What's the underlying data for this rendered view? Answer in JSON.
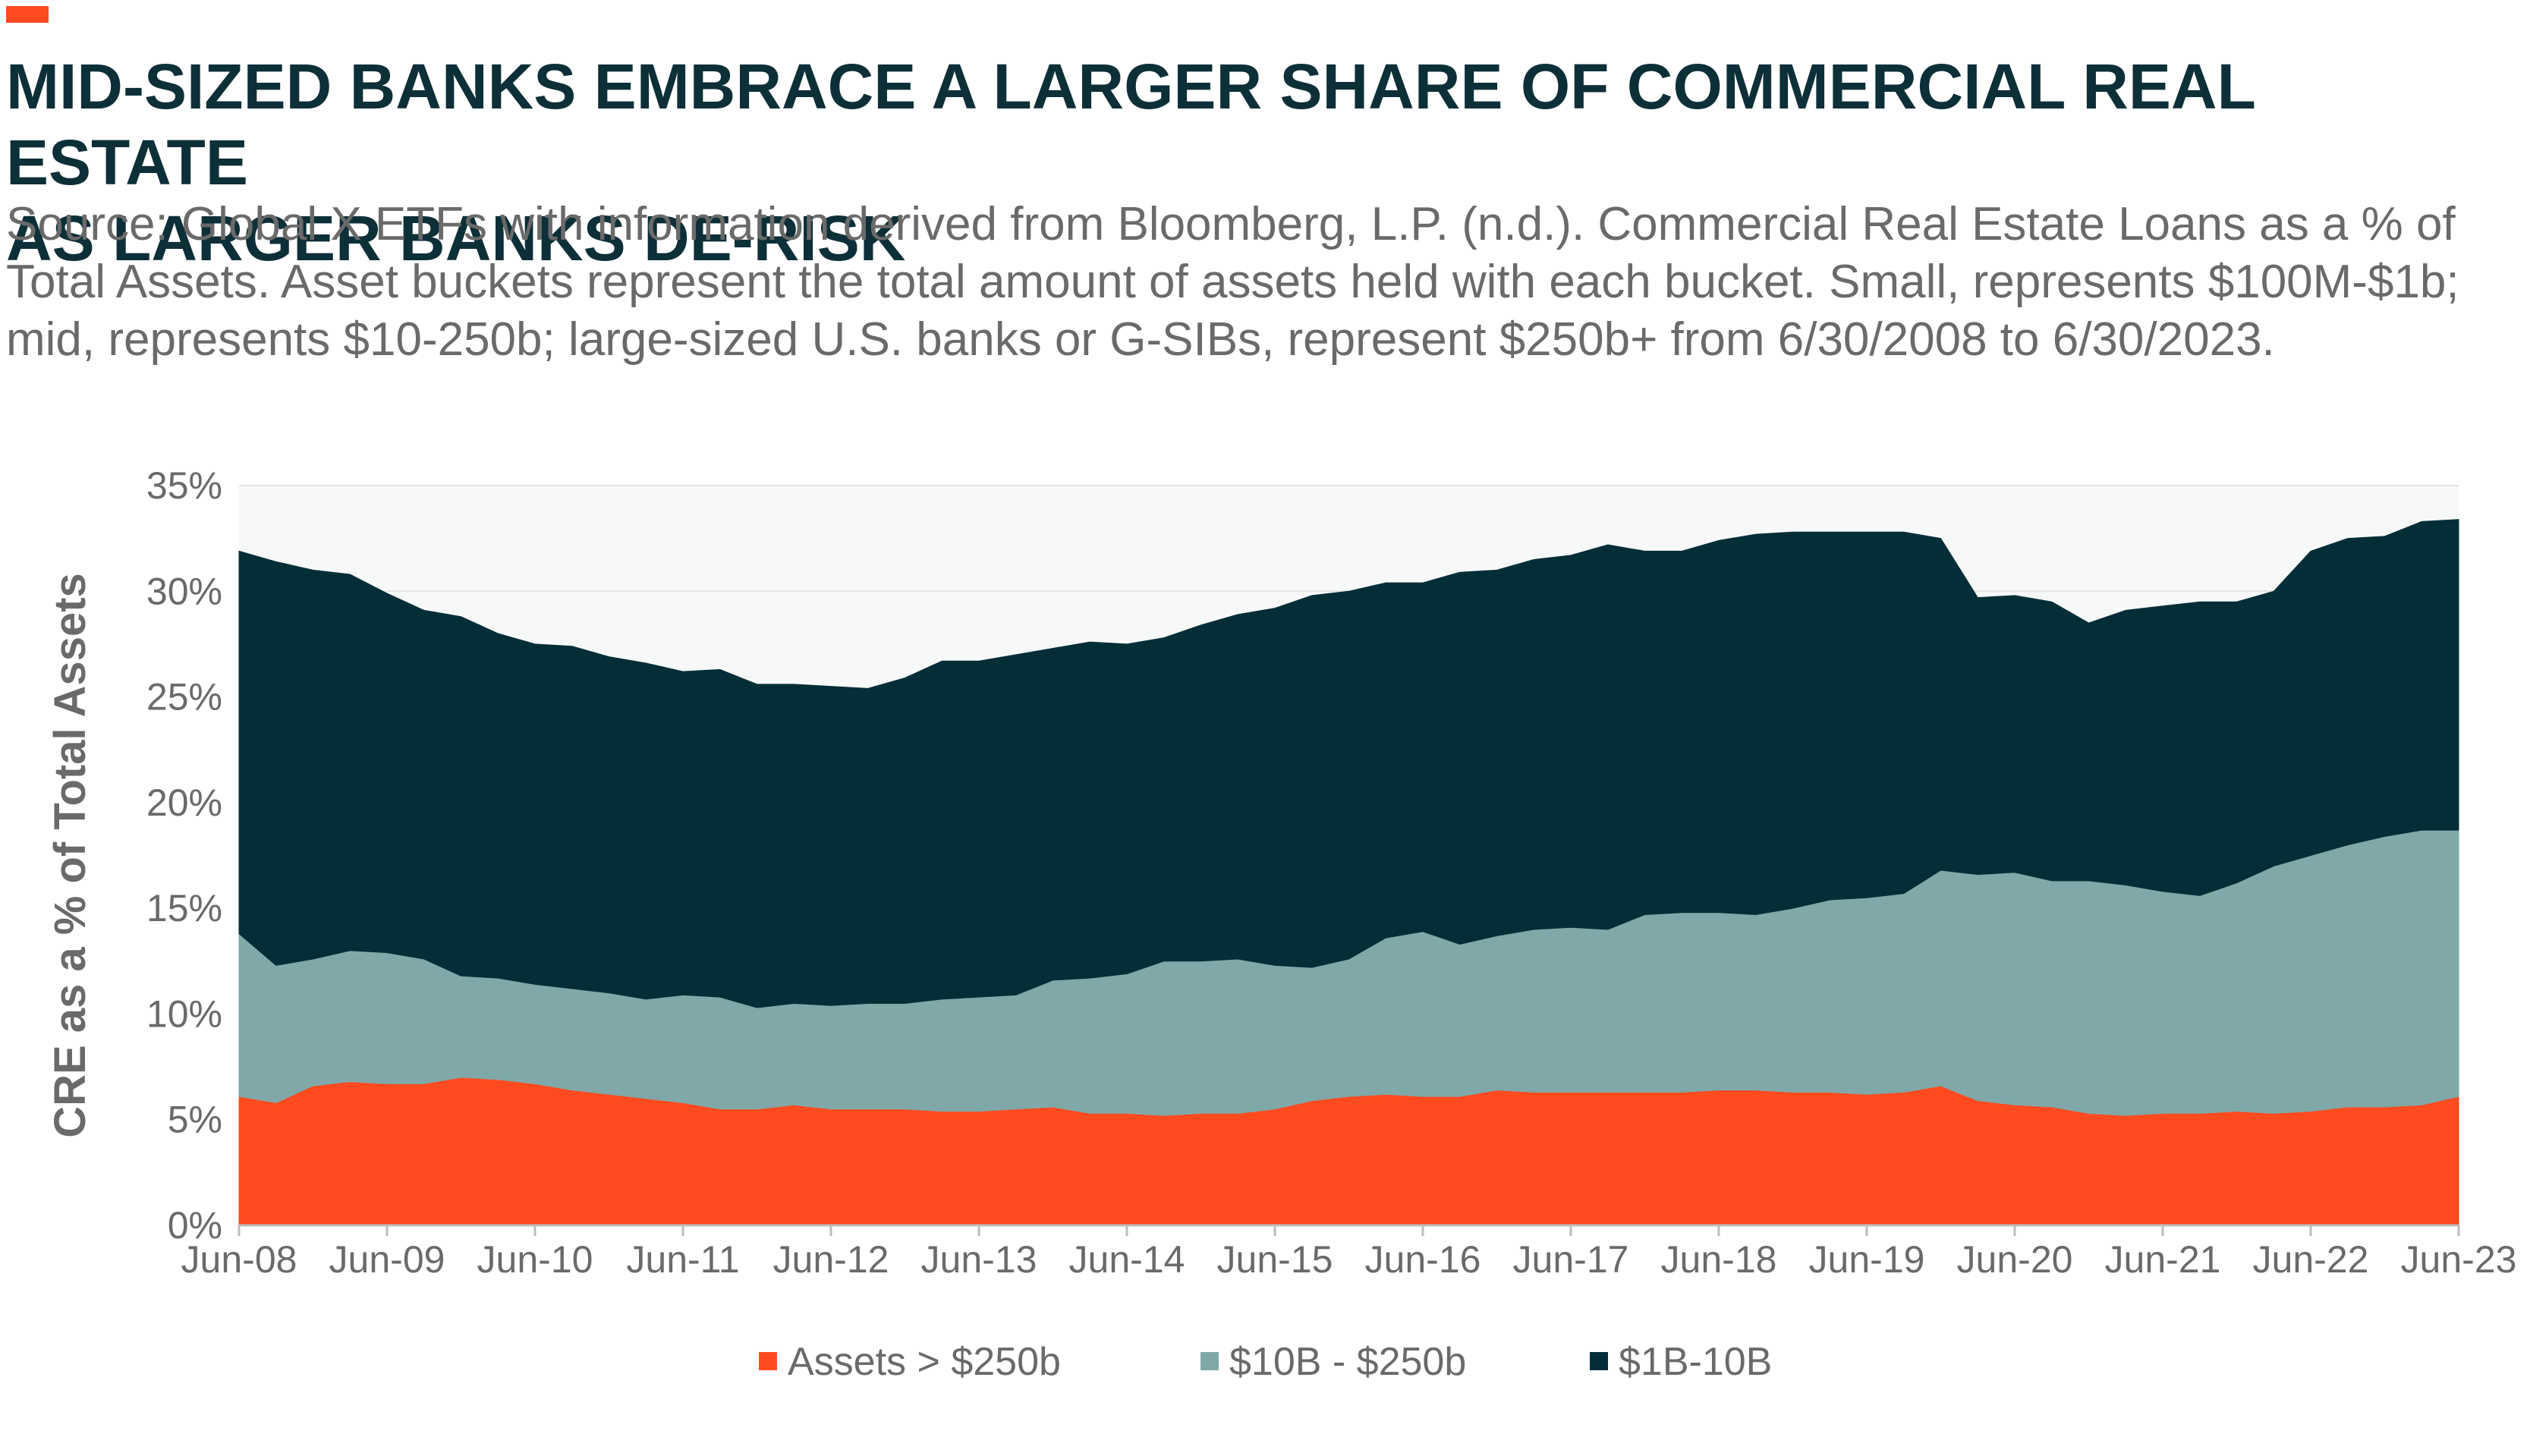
{
  "header": {
    "title_line1": "MID-SIZED BANKS EMBRACE A LARGER SHARE OF COMMERCIAL REAL ESTATE",
    "title_line2": "AS LARGER BANKS DE-RISK",
    "subtitle_line1": "Source: Global X ETFs with information derived from Bloomberg, L.P. (n.d.). Commercial Real Estate Loans as a % of",
    "subtitle_line2": "Total Assets. Asset buckets represent the total amount of assets held with each bucket. Small, represents $100M-$1b;",
    "subtitle_line3": "mid, represents $10-250b; large-sized U.S. banks or G-SIBs, represent $250b+ from 6/30/2008 to 6/30/2023."
  },
  "colors": {
    "accent": "#ff4b1f",
    "large": "#ff4b1f",
    "mid": "#80a8a8",
    "small": "#032e38",
    "plot_bg": "#f7f8f8",
    "grid": "#e3e3e3",
    "text": "#6a6a6a"
  },
  "chart_data": {
    "type": "area",
    "stacked": true,
    "ylabel": "CRE as a % of Total Assets",
    "xlabel": "",
    "ylim": [
      0,
      35
    ],
    "yticks": [
      "0%",
      "5%",
      "10%",
      "15%",
      "20%",
      "25%",
      "30%",
      "35%"
    ],
    "grid": true,
    "legend_position": "bottom",
    "x_tick_labels": [
      "Jun-08",
      "Jun-09",
      "Jun-10",
      "Jun-11",
      "Jun-12",
      "Jun-13",
      "Jun-14",
      "Jun-15",
      "Jun-16",
      "Jun-17",
      "Jun-18",
      "Jun-19",
      "Jun-20",
      "Jun-21",
      "Jun-22",
      "Jun-23"
    ],
    "x": [
      "Jun-08",
      "Sep-08",
      "Dec-08",
      "Mar-09",
      "Jun-09",
      "Sep-09",
      "Dec-09",
      "Mar-10",
      "Jun-10",
      "Sep-10",
      "Dec-10",
      "Mar-11",
      "Jun-11",
      "Sep-11",
      "Dec-11",
      "Mar-12",
      "Jun-12",
      "Sep-12",
      "Dec-12",
      "Mar-13",
      "Jun-13",
      "Sep-13",
      "Dec-13",
      "Mar-14",
      "Jun-14",
      "Sep-14",
      "Dec-14",
      "Mar-15",
      "Jun-15",
      "Sep-15",
      "Dec-15",
      "Mar-16",
      "Jun-16",
      "Sep-16",
      "Dec-16",
      "Mar-17",
      "Jun-17",
      "Sep-17",
      "Dec-17",
      "Mar-18",
      "Jun-18",
      "Sep-18",
      "Dec-18",
      "Mar-19",
      "Jun-19",
      "Sep-19",
      "Dec-19",
      "Mar-20",
      "Jun-20",
      "Sep-20",
      "Dec-20",
      "Mar-21",
      "Jun-21",
      "Sep-21",
      "Dec-21",
      "Mar-22",
      "Jun-22",
      "Sep-22",
      "Dec-22",
      "Mar-23",
      "Jun-23"
    ],
    "series": [
      {
        "name": "Assets > $250b",
        "color": "#ff4b1f",
        "values": [
          6.1,
          5.8,
          6.6,
          6.8,
          6.7,
          6.7,
          7.0,
          6.9,
          6.7,
          6.4,
          6.2,
          6.0,
          5.8,
          5.5,
          5.5,
          5.7,
          5.5,
          5.5,
          5.5,
          5.4,
          5.4,
          5.5,
          5.6,
          5.3,
          5.3,
          5.2,
          5.3,
          5.3,
          5.5,
          5.9,
          6.1,
          6.2,
          6.1,
          6.1,
          6.4,
          6.3,
          6.3,
          6.3,
          6.3,
          6.3,
          6.4,
          6.4,
          6.3,
          6.3,
          6.2,
          6.3,
          6.6,
          5.9,
          5.7,
          5.6,
          5.3,
          5.2,
          5.3,
          5.3,
          5.4,
          5.3,
          5.4,
          5.6,
          5.6,
          5.7,
          6.1
        ]
      },
      {
        "name": "$10B - $250b",
        "color": "#80a8a8",
        "values": [
          7.7,
          6.5,
          6.0,
          6.2,
          6.2,
          5.9,
          4.8,
          4.8,
          4.7,
          4.8,
          4.8,
          4.7,
          5.1,
          5.3,
          4.8,
          4.8,
          4.9,
          5.0,
          5.0,
          5.3,
          5.4,
          5.4,
          6.0,
          6.4,
          6.6,
          7.3,
          7.2,
          7.3,
          6.8,
          6.3,
          6.5,
          7.4,
          7.8,
          7.2,
          7.3,
          7.7,
          7.8,
          7.7,
          8.4,
          8.5,
          8.4,
          8.3,
          8.7,
          9.1,
          9.3,
          9.4,
          10.2,
          10.7,
          11.0,
          10.7,
          11.0,
          10.9,
          10.5,
          10.3,
          10.8,
          11.7,
          12.1,
          12.4,
          12.8,
          13.0,
          12.6
        ]
      },
      {
        "name": "$1B-10B",
        "color": "#032e38",
        "values": [
          18.1,
          19.1,
          18.4,
          17.8,
          17.0,
          16.5,
          17.0,
          16.3,
          16.1,
          16.2,
          15.9,
          15.9,
          15.3,
          15.5,
          15.3,
          15.1,
          15.1,
          14.9,
          15.4,
          16.0,
          15.9,
          16.1,
          15.7,
          15.9,
          15.6,
          15.3,
          15.9,
          16.3,
          16.9,
          17.6,
          17.4,
          16.8,
          16.5,
          17.6,
          17.3,
          17.5,
          17.6,
          18.2,
          17.2,
          17.1,
          17.6,
          18.0,
          17.8,
          17.4,
          17.3,
          17.1,
          15.7,
          13.1,
          13.1,
          13.2,
          12.2,
          13.0,
          13.5,
          13.9,
          13.3,
          13.0,
          14.4,
          14.5,
          14.2,
          14.6,
          14.7
        ]
      }
    ]
  }
}
